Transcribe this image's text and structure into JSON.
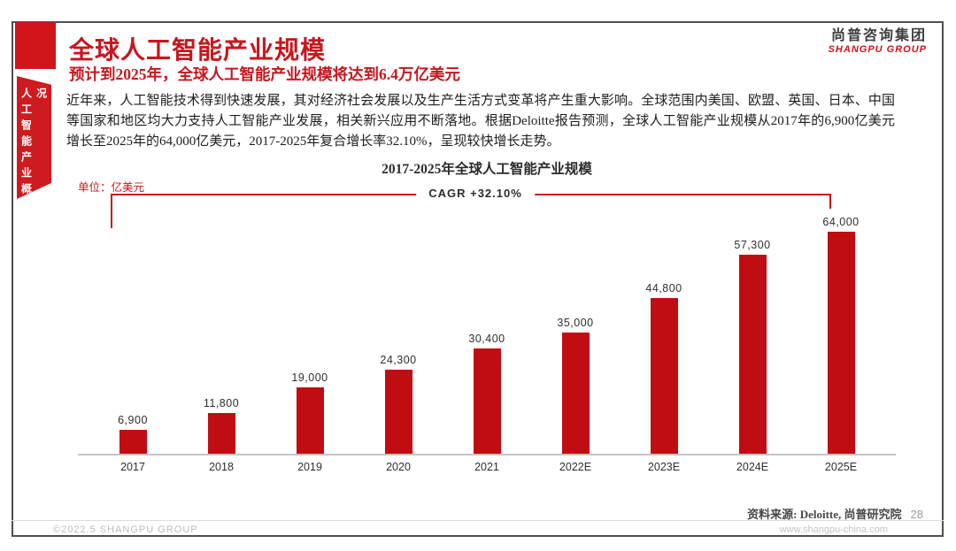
{
  "slide": {
    "title": "全球人工智能产业规模",
    "subtitle": "预计到2025年，全球人工智能产业规模将达到6.4万亿美元",
    "body": "近年来，人工智能技术得到快速发展，其对经济社会发展以及生产生活方式变革将产生重大影响。全球范围内美国、欧盟、英国、日本、中国等国家和地区均大力支持人工智能产业发展，相关新兴应用不断落地。根据Deloitte报告预测，全球人工智能产业规模从2017年的6,900亿美元增长至2025年的64,000亿美元，2017-2025年复合增长率32.10%，呈现较快增长走势。",
    "sidebar_tab": "人工智能产业概况",
    "logo_cn": "尚普咨询集团",
    "logo_en": "SHANGPU GROUP"
  },
  "chart": {
    "title": "2017-2025年全球人工智能产业规模",
    "unit_label": "单位：亿美元",
    "cagr_label": "CAGR +32.10%"
  },
  "chart_data": {
    "type": "bar",
    "title": "2017-2025年全球人工智能产业规模",
    "unit": "亿美元",
    "categories": [
      "2017",
      "2018",
      "2019",
      "2020",
      "2021",
      "2022E",
      "2023E",
      "2024E",
      "2025E"
    ],
    "values": [
      6900,
      11800,
      19000,
      24300,
      30400,
      35000,
      44800,
      57300,
      64000
    ],
    "value_labels": [
      "6,900",
      "11,800",
      "19,000",
      "24,300",
      "30,400",
      "35,000",
      "44,800",
      "57,300",
      "64,000"
    ],
    "annotation": "CAGR +32.10%",
    "bar_color": "#c00d12",
    "ylim": [
      0,
      64000
    ],
    "grid": false,
    "legend": "none"
  },
  "footer": {
    "copyright": "©2022.5 SHANGPU GROUP",
    "source": "资料来源: Deloitte, 尚普研究院",
    "page": "28",
    "website": "www.shangpu-china.com"
  },
  "colors": {
    "accent_red": "#c8161e",
    "bar_red": "#c00d12",
    "frame_gray": "#4f4f4f"
  }
}
